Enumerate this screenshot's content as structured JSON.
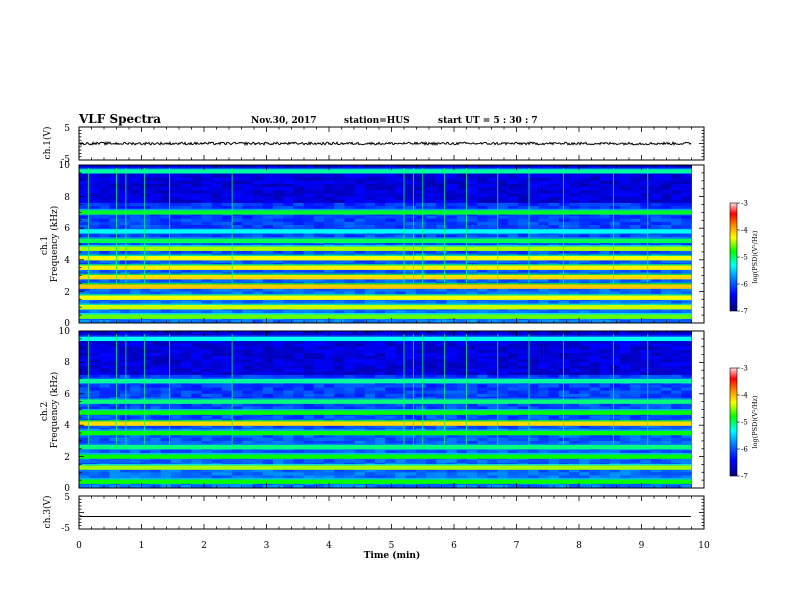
{
  "header": {
    "title": "VLF Spectra",
    "date": "Nov.30, 2017",
    "station": "station=HUS",
    "start": "start  UT =   5 : 30 : 7"
  },
  "colors": {
    "background": "#ffffff",
    "axis": "#000000",
    "colormap": [
      "#00007f",
      "#0000ff",
      "#0080ff",
      "#00ffff",
      "#00ff00",
      "#ffff00",
      "#ff8000",
      "#ff0000",
      "#ffe0e0"
    ]
  },
  "chart_data": [
    {
      "id": "ch1-waveform",
      "type": "line",
      "ylabel": "ch.1(V)",
      "ylim": [
        -5,
        5
      ],
      "yticks": [
        "5",
        "-5"
      ],
      "xlim": [
        0,
        10
      ],
      "trace_mean": 0,
      "trace_amplitude": 0.4,
      "trace_end_min": 9.8
    },
    {
      "id": "ch1-spectrogram",
      "type": "heatmap",
      "ylabel": "ch.1\nFrequency (kHz)",
      "ylim": [
        0,
        10
      ],
      "yticks": [
        "0",
        "2",
        "4",
        "6",
        "8",
        "10"
      ],
      "xlim": [
        0,
        10
      ],
      "data_end_min": 9.8,
      "colorbar": {
        "label": "log(PSD)(V²/Hz)",
        "range": [
          -7,
          -3
        ],
        "ticks": [
          "-3",
          "-4",
          "-5",
          "-6",
          "-7"
        ]
      },
      "bands_khz": [
        {
          "f": 0.4,
          "level": 0.55
        },
        {
          "f": 1.0,
          "level": 0.6
        },
        {
          "f": 1.6,
          "level": 0.62
        },
        {
          "f": 2.3,
          "level": 0.68
        },
        {
          "f": 2.9,
          "level": 0.66
        },
        {
          "f": 3.5,
          "level": 0.64
        },
        {
          "f": 4.1,
          "level": 0.62
        },
        {
          "f": 4.7,
          "level": 0.58
        },
        {
          "f": 5.2,
          "level": 0.46
        },
        {
          "f": 5.8,
          "level": 0.38
        },
        {
          "f": 7.0,
          "level": 0.48
        },
        {
          "f": 9.6,
          "level": 0.42
        }
      ],
      "impulses_min": [
        0.15,
        0.6,
        0.75,
        1.05,
        1.45,
        2.45,
        5.2,
        5.35,
        5.5,
        5.85,
        6.2,
        6.7,
        7.2,
        7.75,
        8.55,
        9.1
      ]
    },
    {
      "id": "ch2-spectrogram",
      "type": "heatmap",
      "ylabel": "ch.2\nFrequency (kHz)",
      "ylim": [
        0,
        10
      ],
      "yticks": [
        "0",
        "2",
        "4",
        "6",
        "8",
        "10"
      ],
      "xlim": [
        0,
        10
      ],
      "data_end_min": 9.8,
      "colorbar": {
        "label": "log(PSD)(V²/Hz)",
        "range": [
          -7,
          -3
        ],
        "ticks": [
          "-3",
          "-4",
          "-5",
          "-6",
          "-7"
        ]
      },
      "bands_khz": [
        {
          "f": 0.4,
          "level": 0.5
        },
        {
          "f": 1.3,
          "level": 0.58
        },
        {
          "f": 2.0,
          "level": 0.5
        },
        {
          "f": 2.6,
          "level": 0.44
        },
        {
          "f": 3.5,
          "level": 0.5
        },
        {
          "f": 4.1,
          "level": 0.66
        },
        {
          "f": 4.8,
          "level": 0.5
        },
        {
          "f": 5.5,
          "level": 0.44
        },
        {
          "f": 6.8,
          "level": 0.42
        },
        {
          "f": 9.5,
          "level": 0.38
        }
      ],
      "impulses_min": [
        0.15,
        0.6,
        0.75,
        1.05,
        1.45,
        2.45,
        5.2,
        5.35,
        5.5,
        5.85,
        6.2,
        6.7,
        7.2,
        7.75,
        8.55,
        9.1
      ]
    },
    {
      "id": "ch3-waveform",
      "type": "line",
      "ylabel": "ch.3(V)",
      "ylim": [
        -5,
        5
      ],
      "yticks": [
        "5",
        "-5"
      ],
      "xlim": [
        0,
        10
      ],
      "trace_mean": -1.2,
      "trace_amplitude": 0,
      "trace_end_min": 9.8
    }
  ],
  "xaxis": {
    "label": "Time  (min)",
    "ticks": [
      "0",
      "1",
      "2",
      "3",
      "4",
      "5",
      "6",
      "7",
      "8",
      "9",
      "10"
    ],
    "range": [
      0,
      10
    ]
  }
}
